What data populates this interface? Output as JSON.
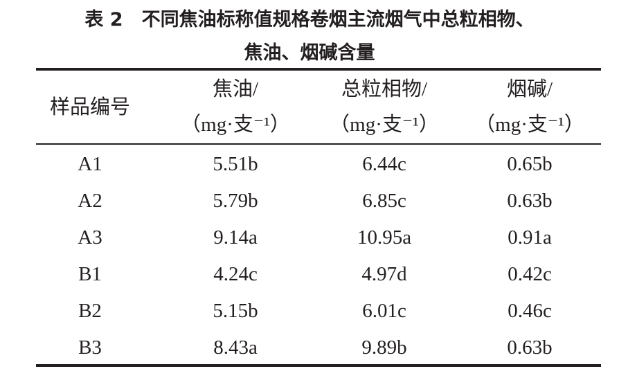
{
  "title": {
    "lines": [
      "表 2　不同焦油标称值规格卷烟主流烟气中总粒相物、",
      "焦油、烟碱含量"
    ]
  },
  "table": {
    "header": {
      "sample": "样品编号",
      "columns": [
        {
          "name": "焦油/",
          "unit": "（mg·支⁻¹）"
        },
        {
          "name": "总粒相物/",
          "unit": "（mg·支⁻¹）"
        },
        {
          "name": "烟碱/",
          "unit": "（mg·支⁻¹）"
        }
      ]
    },
    "rows": [
      [
        "A1",
        "5.51b",
        "6.44c",
        "0.65b"
      ],
      [
        "A2",
        "5.79b",
        "6.85c",
        "0.63b"
      ],
      [
        "A3",
        "9.14a",
        "10.95a",
        "0.91a"
      ],
      [
        "B1",
        "4.24c",
        "4.97d",
        "0.42c"
      ],
      [
        "B2",
        "5.15b",
        "6.01c",
        "0.46c"
      ],
      [
        "B3",
        "8.43a",
        "9.89b",
        "0.63b"
      ]
    ]
  }
}
